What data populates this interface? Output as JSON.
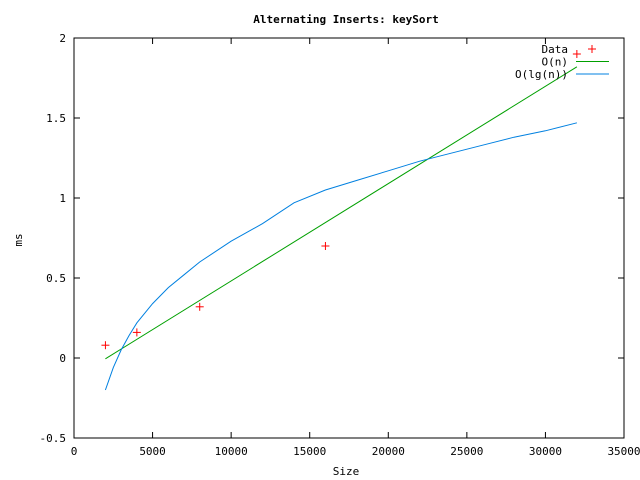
{
  "chart_data": {
    "type": "line",
    "title": "Alternating Inserts: keySort",
    "xlabel": "Size",
    "ylabel": "ms",
    "xlim": [
      0,
      35000
    ],
    "ylim": [
      -0.5,
      2
    ],
    "xticks": [
      0,
      5000,
      10000,
      15000,
      20000,
      25000,
      30000,
      35000
    ],
    "xtick_labels": [
      "0",
      "5000",
      "10000",
      "15000",
      "20000",
      "25000",
      "30000",
      "35000"
    ],
    "yticks": [
      -0.5,
      0,
      0.5,
      1,
      1.5,
      2
    ],
    "ytick_labels": [
      "-0.5",
      "0",
      "0.5",
      "1",
      "1.5",
      "2"
    ],
    "grid": false,
    "legend_position": "top-right",
    "series": [
      {
        "name": "Data",
        "kind": "points",
        "color": "#ff0000",
        "marker": "+",
        "x": [
          2000,
          4000,
          8000,
          16000,
          32000
        ],
        "y": [
          0.08,
          0.16,
          0.32,
          0.7,
          1.9
        ]
      },
      {
        "name": "O(n)",
        "kind": "line",
        "color": "#00a000",
        "x": [
          2000,
          32000
        ],
        "y": [
          -0.005,
          1.82
        ]
      },
      {
        "name": "O(lg(n))",
        "kind": "line",
        "color": "#0080e0",
        "x": [
          2000,
          2500,
          3000,
          3500,
          4000,
          5000,
          6000,
          7000,
          8000,
          10000,
          12000,
          14000,
          16000,
          18000,
          20000,
          22000,
          24000,
          26000,
          28000,
          30000,
          32000
        ],
        "y": [
          -0.2,
          -0.06,
          0.05,
          0.14,
          0.22,
          0.34,
          0.44,
          0.52,
          0.6,
          0.73,
          0.84,
          0.97,
          1.05,
          1.11,
          1.17,
          1.23,
          1.28,
          1.33,
          1.38,
          1.42,
          1.47
        ]
      }
    ]
  }
}
